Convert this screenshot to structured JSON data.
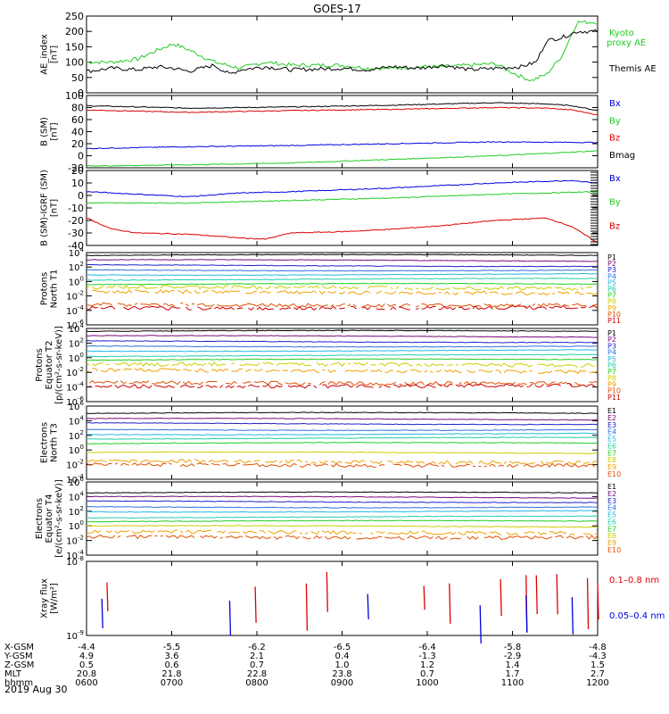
{
  "title": "GOES-17",
  "date_label": "2019 Aug 30",
  "colors": {
    "black": "#000000",
    "red": "#dd0000",
    "green": "#22cc22",
    "blue": "#0000dd",
    "ch": [
      "#000000",
      "#7a0a7a",
      "#2020cc",
      "#2f6fe0",
      "#22b8e0",
      "#22ccaa",
      "#22cc22",
      "#cccc00",
      "#f0a000",
      "#e05000",
      "#cc0000"
    ]
  },
  "chart_data": {
    "type": "line",
    "x_ticks": [
      "0600",
      "0700",
      "0800",
      "0900",
      "1000",
      "1100",
      "1200"
    ],
    "x_range": [
      "0600",
      "1200"
    ],
    "panels": [
      {
        "id": "ae",
        "ylabel": [
          "AE_index",
          "[nT]"
        ],
        "ylim": [
          0,
          250
        ],
        "y_ticks": [
          {
            "v": 0,
            "t": "0"
          },
          {
            "v": 50,
            "t": "50"
          },
          {
            "v": 100,
            "t": "100"
          },
          {
            "v": 150,
            "t": "150"
          },
          {
            "v": 200,
            "t": "200"
          },
          {
            "v": 250,
            "t": "250"
          }
        ],
        "legend": [
          {
            "text": "Kyoto",
            "color": "green"
          },
          {
            "text": "proxy AE",
            "color": "green"
          },
          {
            "text": "Themis AE",
            "color": "black"
          }
        ],
        "series": [
          {
            "color": "green",
            "x": [
              0,
              0.05,
              0.1,
              0.14,
              0.17,
              0.2,
              0.25,
              0.3,
              0.35,
              0.4,
              0.5,
              0.55,
              0.6,
              0.65,
              0.7,
              0.75,
              0.8,
              0.84,
              0.87,
              0.9,
              0.93,
              0.96,
              1.0
            ],
            "y": [
              100,
              100,
              110,
              140,
              160,
              140,
              100,
              80,
              100,
              90,
              90,
              80,
              80,
              85,
              85,
              90,
              95,
              60,
              40,
              60,
              120,
              230,
              230
            ]
          },
          {
            "color": "black",
            "x": [
              0,
              0.05,
              0.1,
              0.14,
              0.17,
              0.2,
              0.25,
              0.28,
              0.3,
              0.35,
              0.4,
              0.5,
              0.55,
              0.6,
              0.65,
              0.7,
              0.75,
              0.8,
              0.85,
              0.88,
              0.9,
              0.93,
              0.96,
              1.0
            ],
            "y": [
              70,
              80,
              75,
              85,
              80,
              70,
              90,
              60,
              75,
              85,
              75,
              80,
              75,
              85,
              80,
              90,
              75,
              80,
              85,
              100,
              170,
              180,
              200,
              200
            ]
          }
        ]
      },
      {
        "id": "b",
        "ylabel": [
          "B (SM)",
          "[nT]"
        ],
        "ylim": [
          -20,
          100
        ],
        "y_ticks": [
          {
            "v": -20,
            "t": "-20"
          },
          {
            "v": 0,
            "t": "0"
          },
          {
            "v": 20,
            "t": "20"
          },
          {
            "v": 40,
            "t": "40"
          },
          {
            "v": 60,
            "t": "60"
          },
          {
            "v": 80,
            "t": "80"
          },
          {
            "v": 100,
            "t": "100"
          }
        ],
        "legend": [
          {
            "text": "Bx",
            "color": "blue"
          },
          {
            "text": "By",
            "color": "green"
          },
          {
            "text": "Bz",
            "color": "red"
          },
          {
            "text": "Bmag",
            "color": "black"
          }
        ],
        "series": [
          {
            "color": "black",
            "x": [
              0,
              0.2,
              0.4,
              0.6,
              0.8,
              0.9,
              0.95,
              1.0
            ],
            "y": [
              83,
              79,
              81,
              84,
              88,
              86,
              83,
              75
            ]
          },
          {
            "color": "red",
            "x": [
              0,
              0.2,
              0.4,
              0.6,
              0.8,
              0.9,
              0.95,
              1.0
            ],
            "y": [
              76,
              72,
              75,
              77,
              80,
              79,
              76,
              68
            ]
          },
          {
            "color": "blue",
            "x": [
              0,
              0.2,
              0.4,
              0.6,
              0.8,
              1.0
            ],
            "y": [
              12,
              15,
              17,
              20,
              23,
              22
            ]
          },
          {
            "color": "green",
            "x": [
              0,
              0.2,
              0.4,
              0.6,
              0.8,
              1.0
            ],
            "y": [
              -17,
              -15,
              -12,
              -6,
              0,
              8
            ]
          }
        ]
      },
      {
        "id": "db",
        "ylabel": [
          "B (SM)-IGRF (SM)",
          "[nT]"
        ],
        "ylim": [
          -40,
          20
        ],
        "y_ticks": [
          {
            "v": -40,
            "t": "-40"
          },
          {
            "v": -30,
            "t": "-30"
          },
          {
            "v": -20,
            "t": "-20"
          },
          {
            "v": -10,
            "t": "-10"
          },
          {
            "v": 0,
            "t": "0"
          },
          {
            "v": 10,
            "t": "10"
          },
          {
            "v": 20,
            "t": "20"
          }
        ],
        "legend": [
          {
            "text": "Bx",
            "color": "blue"
          },
          {
            "text": "By",
            "color": "green"
          },
          {
            "text": "Bz",
            "color": "red"
          }
        ],
        "series": [
          {
            "color": "blue",
            "x": [
              0,
              0.1,
              0.2,
              0.3,
              0.4,
              0.6,
              0.8,
              0.95,
              1.0
            ],
            "y": [
              3,
              1,
              -1,
              2,
              3,
              6,
              10,
              12,
              10
            ]
          },
          {
            "color": "green",
            "x": [
              0,
              0.2,
              0.4,
              0.6,
              0.8,
              1.0
            ],
            "y": [
              -6,
              -6,
              -4,
              -2,
              1,
              3
            ]
          },
          {
            "color": "red",
            "x": [
              0,
              0.05,
              0.1,
              0.2,
              0.3,
              0.35,
              0.4,
              0.5,
              0.6,
              0.7,
              0.8,
              0.9,
              0.95,
              1.0
            ],
            "y": [
              -18,
              -27,
              -30,
              -31,
              -34,
              -35,
              -30,
              -29,
              -27,
              -24,
              -20,
              -18,
              -25,
              -38
            ]
          }
        ]
      },
      {
        "id": "pn",
        "ylabel": [
          "Protons",
          "North T1"
        ],
        "log": true,
        "ylim_exp": [
          -6,
          4
        ],
        "y_ticks_exp": [
          4,
          2,
          0,
          -2,
          -4,
          -6
        ],
        "channels": [
          "P1",
          "P2",
          "P3",
          "P4",
          "P5",
          "P6",
          "P7",
          "P8",
          "P9",
          "P10",
          "P11"
        ],
        "levels_exp": [
          3.6,
          2.9,
          2.2,
          1.6,
          1.0,
          0.3,
          -0.4,
          -0.9,
          -1.5,
          -3.2,
          -3.6
        ],
        "dashed_from": 7
      },
      {
        "id": "pe",
        "ylabel": [
          "Protons",
          "Equator T2",
          "[p/(cm²-s-sr-keV)]"
        ],
        "log": true,
        "ylim_exp": [
          -6,
          4
        ],
        "y_ticks_exp": [
          4,
          2,
          0,
          -2,
          -4,
          -6
        ],
        "channels": [
          "P1",
          "P2",
          "P3",
          "P4",
          "P5",
          "P6",
          "P7",
          "P8",
          "P9",
          "P10",
          "P11"
        ],
        "levels_exp": [
          3.6,
          2.9,
          2.2,
          1.6,
          1.0,
          0.3,
          -0.3,
          -1.0,
          -1.8,
          -3.4,
          -3.8
        ],
        "dashed_from": 7
      },
      {
        "id": "en",
        "ylabel": [
          "Electrons",
          "North T3"
        ],
        "log": true,
        "ylim_exp": [
          -4,
          6
        ],
        "y_ticks_exp": [
          6,
          4,
          2,
          0,
          -2,
          -4
        ],
        "channels": [
          "E1",
          "E2",
          "E3",
          "E4",
          "E5",
          "E6",
          "E7",
          "E8",
          "E9",
          "E10"
        ],
        "levels_exp": [
          5.0,
          4.2,
          3.6,
          2.8,
          2.2,
          1.6,
          0.9,
          -0.4,
          -1.6,
          -2.0
        ],
        "dashed_from": 8
      },
      {
        "id": "ee",
        "ylabel": [
          "Electrons",
          "Equator T4",
          "[e/(cm²-s-sr-keV)]"
        ],
        "log": true,
        "ylim_exp": [
          -4,
          6
        ],
        "y_ticks_exp": [
          6,
          4,
          2,
          0,
          -2,
          -4
        ],
        "channels": [
          "E1",
          "E2",
          "E3",
          "E4",
          "E5",
          "E6",
          "E7",
          "E8",
          "E9",
          "E10"
        ],
        "levels_exp": [
          4.5,
          3.9,
          3.3,
          2.6,
          2.0,
          1.2,
          0.6,
          -0.1,
          -0.9,
          -1.5
        ],
        "dashed_from": 8
      },
      {
        "id": "xr",
        "ylabel": [
          "Xray flux",
          "[W/m²]"
        ],
        "log": true,
        "ylim_exp": [
          -9,
          -8
        ],
        "y_ticks_exp": [
          -8,
          -9
        ],
        "legend": [
          {
            "text": "0.1–0.8 nm",
            "color": "red"
          },
          {
            "text": "0.05–0.4 nm",
            "color": "blue"
          }
        ],
        "red_spikes": [
          0.04,
          0.33,
          0.43,
          0.47,
          0.66,
          0.71,
          0.81,
          0.86,
          0.88,
          0.92,
          0.98,
          1.0
        ],
        "blue_spikes": [
          0.03,
          0.28,
          0.55,
          0.77,
          0.86,
          0.95
        ]
      }
    ]
  },
  "orbit_table": {
    "row_labels": [
      "X-GSM",
      "Y-GSM",
      "Z-GSM",
      "MLT",
      "hhmm"
    ],
    "columns": [
      [
        "-4.4",
        "4.9",
        "0.5",
        "20.8",
        "0600"
      ],
      [
        "-5.5",
        "3.6",
        "0.6",
        "21.8",
        "0700"
      ],
      [
        "-6.2",
        "2.1",
        "0.7",
        "22.8",
        "0800"
      ],
      [
        "-6.5",
        "0.4",
        "1.0",
        "23.8",
        "0900"
      ],
      [
        "-6.4",
        "-1.3",
        "1.2",
        "0.7",
        "1000"
      ],
      [
        "-5.8",
        "-2.9",
        "1.4",
        "1.7",
        "1100"
      ],
      [
        "-4.8",
        "-4.3",
        "1.5",
        "2.7",
        "1200"
      ]
    ]
  }
}
